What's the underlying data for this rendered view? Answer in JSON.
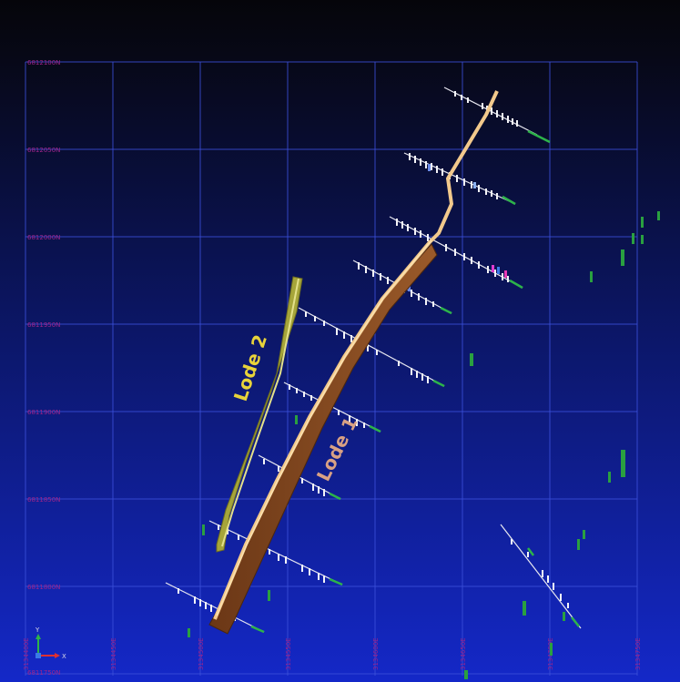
{
  "northings": [
    "6812100N",
    "6812050N",
    "6812000N",
    "6811950N",
    "6811900N",
    "6811850N",
    "6811800N",
    "6811750N"
  ],
  "eastings": [
    "3134400E",
    "3134450E",
    "3134500E",
    "3134550E",
    "3134600E",
    "3134650E",
    "3134700E",
    "3134750E"
  ],
  "lodes": [
    {
      "label": "Lode 1",
      "color": "#d9a184"
    },
    {
      "label": "Lode 2",
      "color": "#e8d33a"
    }
  ],
  "axis_indicator": {
    "y_label": "Y",
    "x_label": "X"
  },
  "colors": {
    "grid": "#3b4fd8",
    "grid_label": "#a0248a",
    "lode1_main": "#8a4a22",
    "lode1_hanging_wall": "#f2c98c",
    "lode2_main": "#a6a53a",
    "drillhole_trace": "#ffffff",
    "mineralised_intercept": "#2db34a"
  }
}
